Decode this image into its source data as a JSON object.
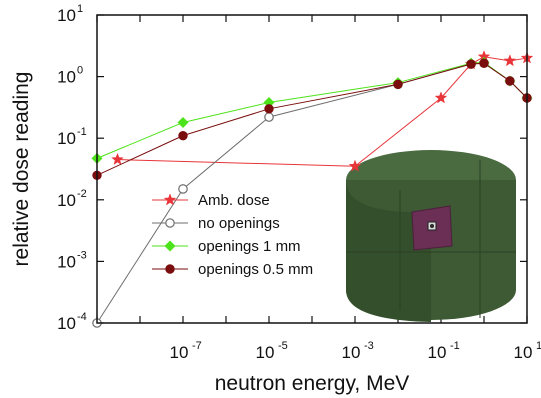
{
  "chart_data": {
    "type": "line",
    "xlabel": "neutron energy, MeV",
    "ylabel": "relative dose reading",
    "x_scale": "log",
    "y_scale": "log",
    "xlim": [
      1e-09,
      10
    ],
    "ylim": [
      0.0001,
      10
    ],
    "x_ticks": [
      {
        "exp": "-7",
        "value": 1e-07
      },
      {
        "exp": "-5",
        "value": 1e-05
      },
      {
        "exp": "-3",
        "value": 0.001
      },
      {
        "exp": "-1",
        "value": 0.1
      },
      {
        "exp": "1",
        "value": 10
      }
    ],
    "y_ticks": [
      {
        "exp": "-4",
        "value": 0.0001
      },
      {
        "exp": "-3",
        "value": 0.001
      },
      {
        "exp": "-2",
        "value": 0.01
      },
      {
        "exp": "-1",
        "value": 0.1
      },
      {
        "exp": "0",
        "value": 1
      },
      {
        "exp": "1",
        "value": 10
      }
    ],
    "tick_base": "10",
    "legend_position": "lower-left",
    "series": [
      {
        "name": "Amb. dose",
        "color": "#e8353a",
        "marker": "star",
        "x": [
          3e-09,
          0.001,
          0.1,
          0.5,
          1,
          4,
          10
        ],
        "y": [
          0.045,
          0.035,
          0.45,
          1.6,
          2.1,
          1.8,
          2.0
        ]
      },
      {
        "name": "no openings",
        "color": "#6e6e6e",
        "marker": "open-circle",
        "x": [
          1e-09,
          1e-07,
          1e-05,
          0.01,
          0.5,
          1,
          4,
          10
        ],
        "y": [
          0.0001,
          0.015,
          0.22,
          0.75,
          1.6,
          1.65,
          0.85,
          0.45
        ]
      },
      {
        "name": "openings 1 mm",
        "color": "#4de31a",
        "marker": "diamond",
        "x": [
          1e-09,
          1e-07,
          1e-05,
          0.01,
          0.5,
          1,
          4,
          10
        ],
        "y": [
          0.047,
          0.18,
          0.38,
          0.8,
          1.65,
          1.7,
          0.85,
          0.45
        ]
      },
      {
        "name": "openings 0.5 mm",
        "color": "#7a0d0d",
        "marker": "filled-circle",
        "x": [
          1e-09,
          1e-07,
          1e-05,
          0.01,
          0.5,
          1,
          4,
          10
        ],
        "y": [
          0.025,
          0.11,
          0.3,
          0.75,
          1.6,
          1.65,
          0.85,
          0.45
        ]
      }
    ]
  },
  "inset": {
    "description_icon": "detector-cylinder-icon",
    "body_color": "#3d5a34",
    "window_color": "#6b2f55"
  }
}
